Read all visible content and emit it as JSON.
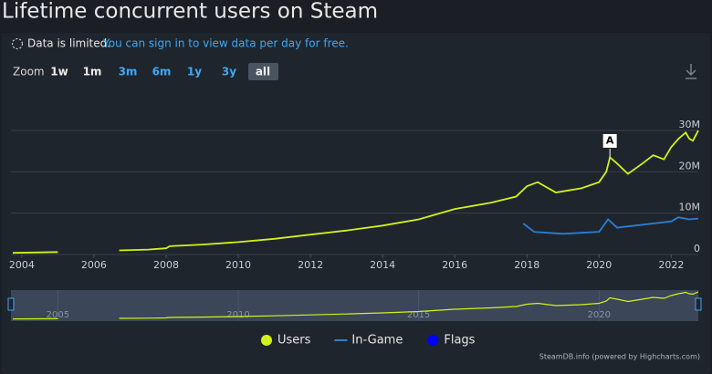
{
  "chart_data": {
    "type": "line",
    "title": "Lifetime concurrent users on Steam",
    "notice": {
      "status": "Data is limited.",
      "link": "You can sign in to view data per day for free."
    },
    "zoom": {
      "label": "Zoom",
      "buttons": [
        "1w",
        "1m",
        "3m",
        "6m",
        "1y",
        "3y",
        "all"
      ],
      "active": 6,
      "disabled": [
        0,
        1
      ]
    },
    "xlim": [
      2003.7,
      2022.75
    ],
    "xticks": [
      2004,
      2006,
      2008,
      2010,
      2012,
      2014,
      2016,
      2018,
      2020,
      2022
    ],
    "ylim": [
      0,
      30000000
    ],
    "yticks": [
      0,
      {
        "value": 10000000,
        "label": "10M"
      },
      {
        "value": 20000000,
        "label": "20M"
      },
      {
        "value": 30000000,
        "label": "30M"
      }
    ],
    "grid": true,
    "navigator_xticks": [
      2005,
      2010,
      2015,
      2020
    ],
    "series": [
      {
        "name": "Users",
        "color": "#d1f21c",
        "x": [
          2003.75,
          2004.5,
          2005.0,
          2005.2,
          2006.7,
          2007.5,
          2008.0,
          2008.1,
          2009,
          2010,
          2011,
          2012,
          2013,
          2014,
          2015,
          2016,
          2017,
          2017.7,
          2018.0,
          2018.3,
          2018.8,
          2019.5,
          2020.0,
          2020.2,
          2020.3,
          2020.5,
          2020.8,
          2021.2,
          2021.5,
          2021.8,
          2022.0,
          2022.2,
          2022.4,
          2022.5,
          2022.6,
          2022.75
        ],
        "values": [
          400000,
          500000,
          600000,
          null,
          1000000,
          1200000,
          1500000,
          2000000,
          2400000,
          3000000,
          3800000,
          4800000,
          5800000,
          7000000,
          8500000,
          11000000,
          12500000,
          14000000,
          16500000,
          17500000,
          15000000,
          16000000,
          17500000,
          20000000,
          23500000,
          22000000,
          19500000,
          22000000,
          24000000,
          23000000,
          26000000,
          28000000,
          29500000,
          28000000,
          27500000,
          30000000
        ]
      },
      {
        "name": "In-Game",
        "color": "#2a7fd4",
        "x": [
          2017.9,
          2018.2,
          2019,
          2020,
          2020.25,
          2020.5,
          2021,
          2021.5,
          2022,
          2022.2,
          2022.5,
          2022.75
        ],
        "values": [
          7500000,
          5500000,
          5000000,
          5500000,
          8500000,
          6500000,
          7000000,
          7500000,
          8000000,
          9000000,
          8500000,
          8700000
        ]
      },
      {
        "name": "Flags",
        "color": "#0000ff",
        "x": [
          2020.3
        ],
        "labels": [
          "A"
        ]
      }
    ],
    "credits": "SteamDB.info (powered by Highcharts.com)"
  }
}
